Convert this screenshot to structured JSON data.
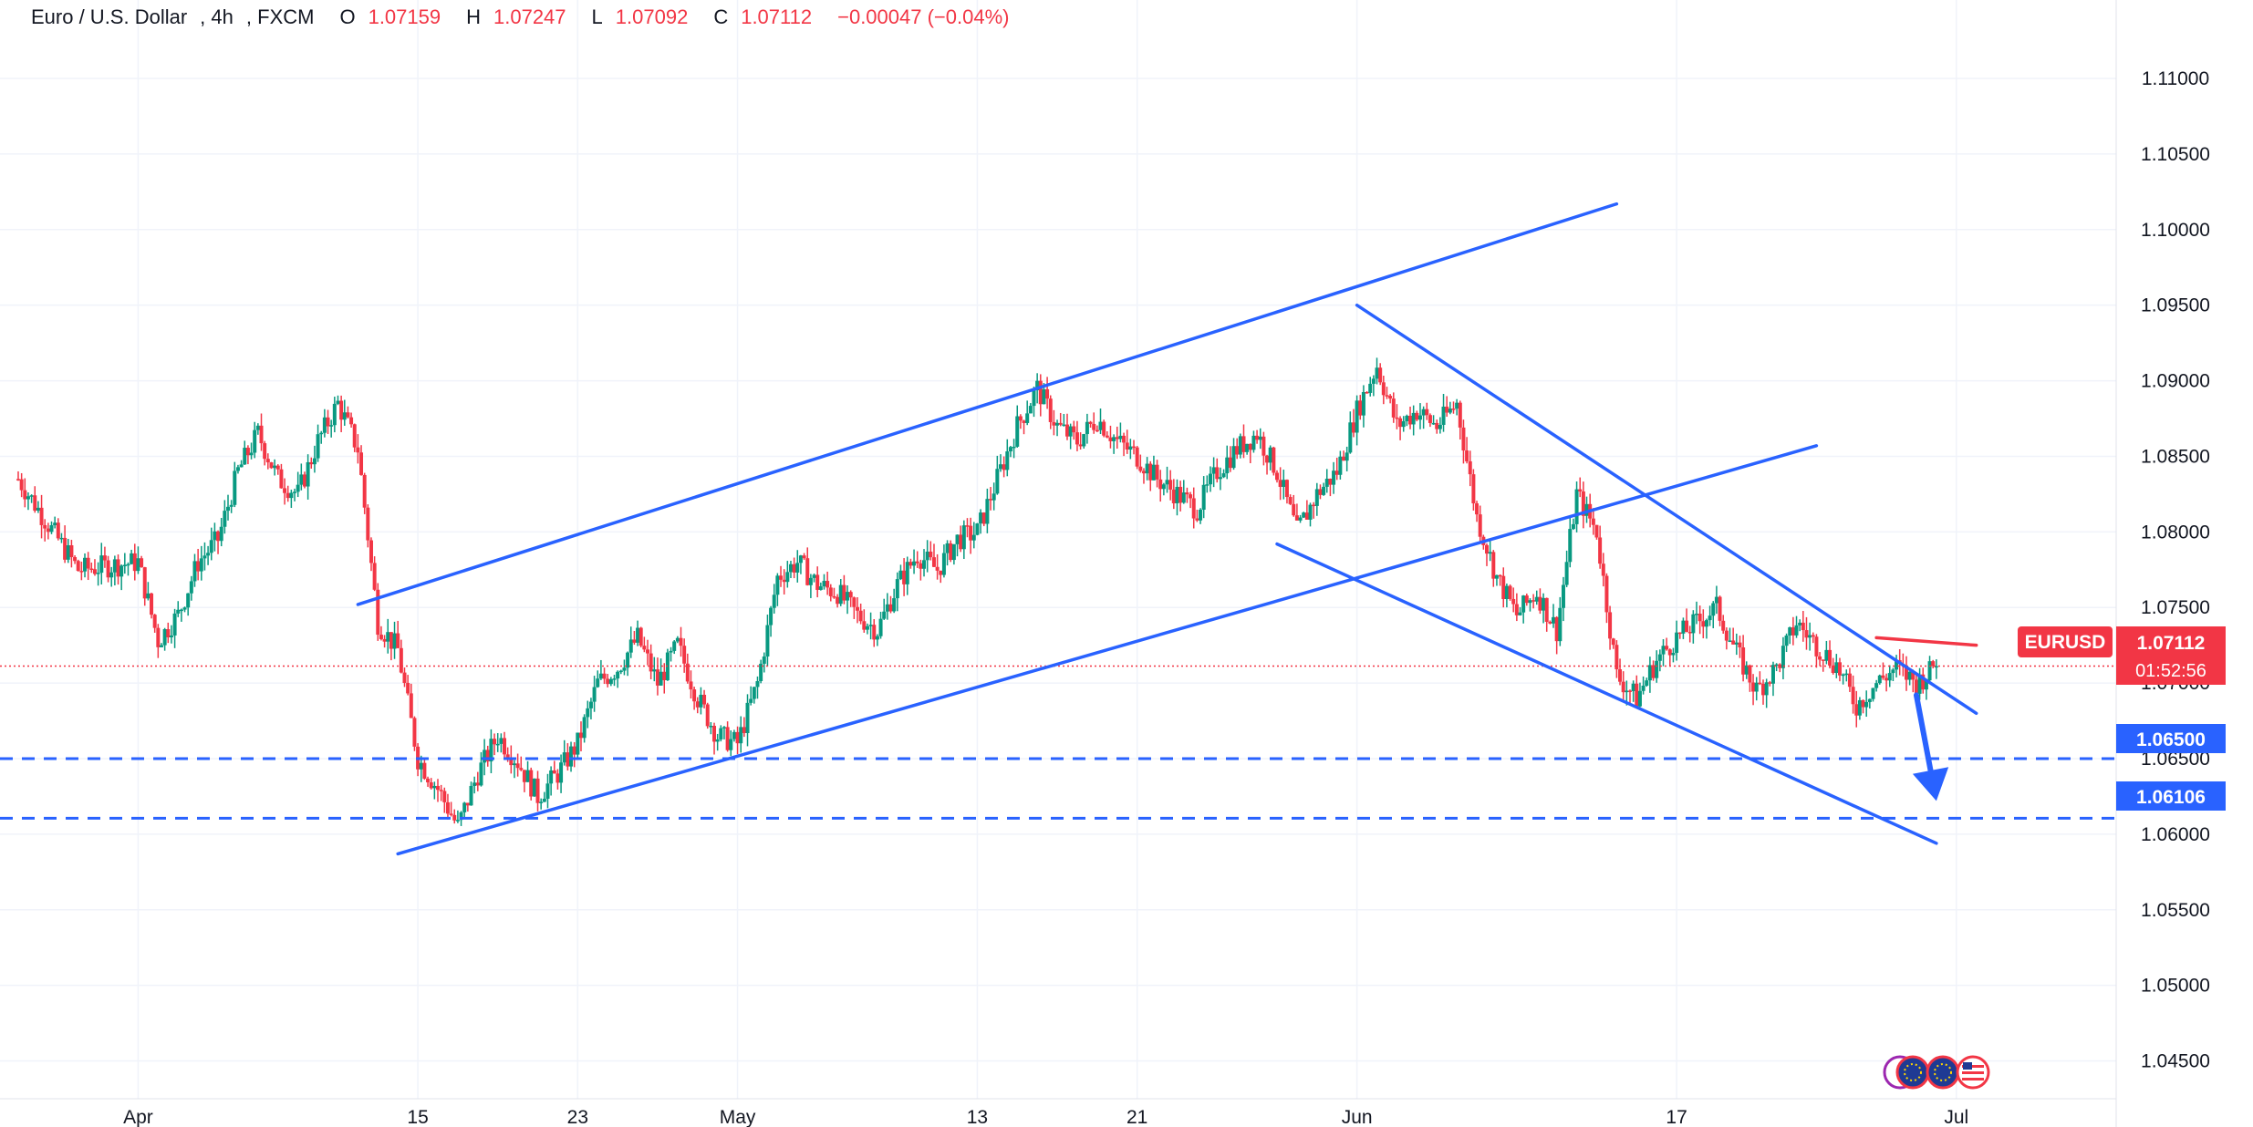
{
  "header": {
    "symbol_name": "Euro / U.S. Dollar",
    "interval": "4h",
    "exchange": "FXCM",
    "open_label": "O",
    "open": "1.07159",
    "high_label": "H",
    "high": "1.07247",
    "low_label": "L",
    "low": "1.07092",
    "close_label": "C",
    "close": "1.07112",
    "change": "−0.00047 (−0.04%)"
  },
  "price_axis": {
    "ticks": [
      "1.11000",
      "1.10500",
      "1.10000",
      "1.09500",
      "1.09000",
      "1.08500",
      "1.08000",
      "1.07500",
      "1.07000",
      "1.06500",
      "1.06000",
      "1.05500",
      "1.05000",
      "1.04500"
    ]
  },
  "time_axis": {
    "labels": [
      "Apr",
      "15",
      "23",
      "May",
      "13",
      "21",
      "Jun",
      "17",
      "Jul"
    ]
  },
  "price_tags": {
    "symbol": "EURUSD",
    "last_price": "1.07112",
    "countdown": "01:52:56",
    "level1": "1.06500",
    "level2": "1.06106"
  },
  "colors": {
    "up": "#089981",
    "down": "#f23645",
    "trendline": "#2962ff",
    "resistance": "#f23645",
    "level_tag": "#2962ff",
    "grid": "#f0f3fa"
  },
  "event_icons": [
    "event-icon-1",
    "eu-flag-icon",
    "eu-flag-icon",
    "us-flag-icon"
  ],
  "chart_data": {
    "type": "candlestick",
    "title": "Euro / U.S. Dollar, 4h, FXCM",
    "y_range": [
      1.0425,
      1.1135
    ],
    "y_ticks": [
      1.11,
      1.105,
      1.1,
      1.095,
      1.09,
      1.085,
      1.08,
      1.075,
      1.07,
      1.065,
      1.06,
      1.055,
      1.05,
      1.045
    ],
    "x_range": [
      "2024-03-26",
      "2024-07-09"
    ],
    "x_ticks": [
      "2024-04-01",
      "2024-04-15",
      "2024-04-23",
      "2024-05-01",
      "2024-05-13",
      "2024-05-21",
      "2024-06-01",
      "2024-06-17",
      "2024-07-01"
    ],
    "last_price": 1.07112,
    "horizontal_levels": [
      1.065,
      1.06106
    ],
    "price_path": [
      [
        "2024-03-26",
        1.0835
      ],
      [
        "2024-03-28",
        1.0795
      ],
      [
        "2024-03-29",
        1.0775
      ],
      [
        "2024-04-01",
        1.078
      ],
      [
        "2024-04-02",
        1.0728
      ],
      [
        "2024-04-03",
        1.0745
      ],
      [
        "2024-04-04",
        1.078
      ],
      [
        "2024-04-05",
        1.0795
      ],
      [
        "2024-04-06",
        1.084
      ],
      [
        "2024-04-07",
        1.0865
      ],
      [
        "2024-04-08",
        1.0835
      ],
      [
        "2024-04-09",
        1.0825
      ],
      [
        "2024-04-10",
        1.086
      ],
      [
        "2024-04-11",
        1.0885
      ],
      [
        "2024-04-12",
        1.0855
      ],
      [
        "2024-04-13",
        1.074
      ],
      [
        "2024-04-14",
        1.0722
      ],
      [
        "2024-04-15",
        1.065
      ],
      [
        "2024-04-16",
        1.063
      ],
      [
        "2024-04-17",
        1.0605
      ],
      [
        "2024-04-18",
        1.064
      ],
      [
        "2024-04-19",
        1.0665
      ],
      [
        "2024-04-20",
        1.0648
      ],
      [
        "2024-04-21",
        1.0625
      ],
      [
        "2024-04-22",
        1.064
      ],
      [
        "2024-04-23",
        1.066
      ],
      [
        "2024-04-24",
        1.07
      ],
      [
        "2024-04-25",
        1.071
      ],
      [
        "2024-04-26",
        1.073
      ],
      [
        "2024-04-27",
        1.07
      ],
      [
        "2024-04-28",
        1.0725
      ],
      [
        "2024-04-29",
        1.069
      ],
      [
        "2024-04-30",
        1.0665
      ],
      [
        "2024-05-01",
        1.066
      ],
      [
        "2024-05-02",
        1.07
      ],
      [
        "2024-05-03",
        1.077
      ],
      [
        "2024-05-04",
        1.078
      ],
      [
        "2024-05-05",
        1.0765
      ],
      [
        "2024-05-06",
        1.076
      ],
      [
        "2024-05-07",
        1.0745
      ],
      [
        "2024-05-08",
        1.0735
      ],
      [
        "2024-05-09",
        1.0765
      ],
      [
        "2024-05-10",
        1.0785
      ],
      [
        "2024-05-11",
        1.0775
      ],
      [
        "2024-05-12",
        1.0795
      ],
      [
        "2024-05-13",
        1.08
      ],
      [
        "2024-05-14",
        1.0835
      ],
      [
        "2024-05-15",
        1.087
      ],
      [
        "2024-05-16",
        1.0895
      ],
      [
        "2024-05-17",
        1.087
      ],
      [
        "2024-05-18",
        1.086
      ],
      [
        "2024-05-19",
        1.0875
      ],
      [
        "2024-05-20",
        1.086
      ],
      [
        "2024-05-21",
        1.085
      ],
      [
        "2024-05-22",
        1.0835
      ],
      [
        "2024-05-23",
        1.0825
      ],
      [
        "2024-05-24",
        1.0815
      ],
      [
        "2024-05-25",
        1.084
      ],
      [
        "2024-05-26",
        1.0855
      ],
      [
        "2024-05-27",
        1.0865
      ],
      [
        "2024-05-28",
        1.084
      ],
      [
        "2024-05-29",
        1.08
      ],
      [
        "2024-05-30",
        1.0825
      ],
      [
        "2024-05-31",
        1.084
      ],
      [
        "2024-06-01",
        1.088
      ],
      [
        "2024-06-02",
        1.091
      ],
      [
        "2024-06-03",
        1.087
      ],
      [
        "2024-06-04",
        1.088
      ],
      [
        "2024-06-05",
        1.087
      ],
      [
        "2024-06-06",
        1.0885
      ],
      [
        "2024-06-07",
        1.081
      ],
      [
        "2024-06-08",
        1.077
      ],
      [
        "2024-06-09",
        1.0745
      ],
      [
        "2024-06-10",
        1.076
      ],
      [
        "2024-06-11",
        1.0735
      ],
      [
        "2024-06-12",
        1.0825
      ],
      [
        "2024-06-13",
        1.08
      ],
      [
        "2024-06-14",
        1.0705
      ],
      [
        "2024-06-15",
        1.069
      ],
      [
        "2024-06-16",
        1.0715
      ],
      [
        "2024-06-17",
        1.073
      ],
      [
        "2024-06-18",
        1.074
      ],
      [
        "2024-06-19",
        1.075
      ],
      [
        "2024-06-20",
        1.072
      ],
      [
        "2024-06-21",
        1.0695
      ],
      [
        "2024-06-22",
        1.071
      ],
      [
        "2024-06-23",
        1.074
      ],
      [
        "2024-06-24",
        1.0725
      ],
      [
        "2024-06-25",
        1.0712
      ],
      [
        "2024-06-26",
        1.0685
      ],
      [
        "2024-06-27",
        1.07
      ],
      [
        "2024-06-28",
        1.071
      ],
      [
        "2024-06-29",
        1.07
      ],
      [
        "2024-06-30",
        1.0711
      ]
    ],
    "drawings": [
      {
        "kind": "trendline",
        "color": "#2962ff",
        "from": [
          "2024-04-12",
          1.0752
        ],
        "to": [
          "2024-06-14",
          1.1017
        ]
      },
      {
        "kind": "trendline",
        "color": "#2962ff",
        "from": [
          "2024-04-14",
          1.0587
        ],
        "to": [
          "2024-06-24",
          1.0857
        ]
      },
      {
        "kind": "trendline",
        "color": "#2962ff",
        "from": [
          "2024-06-01",
          1.095
        ],
        "to": [
          "2024-07-02",
          1.068
        ]
      },
      {
        "kind": "trendline",
        "color": "#2962ff",
        "from": [
          "2024-05-28",
          1.0792
        ],
        "to": [
          "2024-06-30",
          1.0594
        ]
      },
      {
        "kind": "trendline",
        "color": "#f23645",
        "from": [
          "2024-06-27",
          1.073
        ],
        "to": [
          "2024-07-02",
          1.0725
        ]
      },
      {
        "kind": "arrow",
        "color": "#2962ff",
        "from": [
          "2024-06-29",
          1.0692
        ],
        "to": [
          "2024-06-30",
          1.0622
        ]
      }
    ]
  }
}
